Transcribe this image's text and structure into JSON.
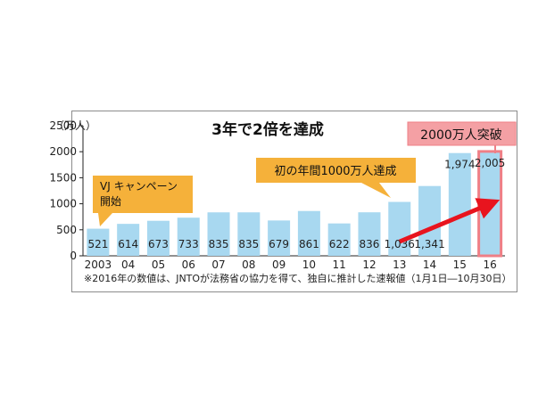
{
  "chart_data": {
    "type": "bar",
    "title": "3年で2倍を達成",
    "ylabel": "（万人）",
    "ylim": [
      0,
      2500
    ],
    "yticks": [
      0,
      500,
      1000,
      1500,
      2000,
      2500
    ],
    "categories": [
      "2003",
      "04",
      "05",
      "06",
      "07",
      "08",
      "09",
      "10",
      "11",
      "12",
      "13",
      "14",
      "15",
      "16"
    ],
    "values": [
      521,
      614,
      673,
      733,
      835,
      835,
      679,
      861,
      622,
      836,
      1036,
      1341,
      1974,
      2005
    ],
    "value_labels": [
      "521",
      "614",
      "673",
      "733",
      "835",
      "835",
      "679",
      "861",
      "622",
      "836",
      "1,036",
      "1,341",
      "1,974",
      "2,005"
    ],
    "grid": false,
    "annotations": {
      "campaign": "VJ キャンペーン\n開始",
      "milestone": "初の年間1000万人達成",
      "highlight": "2000万人突破"
    },
    "footnote": "※2016年の数値は、JNTOが法務省の協力を得て、独自に推計した速報値（1月1日―10月30日）",
    "colors": {
      "bar": "#a8d8f0",
      "highlight_border": "#ef7f86",
      "highlight_box": "#f4a0a4",
      "callout": "#f5b13a",
      "arrow": "#e8141e"
    }
  }
}
